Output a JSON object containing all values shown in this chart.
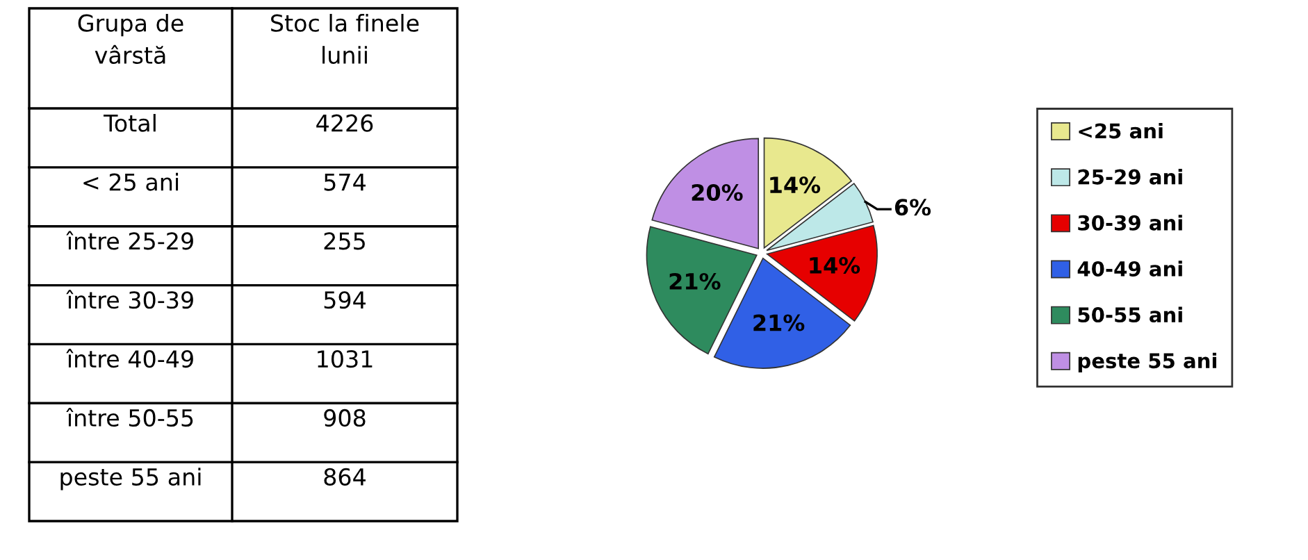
{
  "chart_data": [
    {
      "type": "other",
      "categories": [
        "Total",
        "< 25 ani",
        "între 25-29",
        "între 30-39",
        "între 40-49",
        "între 50-55",
        "peste 55 ani"
      ],
      "values": [
        4226,
        574,
        255,
        594,
        1031,
        908,
        864
      ],
      "data_labels": true,
      "annotations": [
        "Grupa de\nvârstă",
        "Stoc la finele\nlunii"
      ]
    },
    {
      "type": "pie",
      "categories": [
        "<25 ani",
        "25-29 ani",
        "30-39 ani",
        "40-49 ani",
        "50-55 ani",
        "peste 55 ani"
      ],
      "values": [
        14,
        6,
        14,
        21,
        21,
        20
      ],
      "value_labels": [
        "14%",
        "6%",
        "14%",
        "21%",
        "21%",
        "20%"
      ],
      "colors": [
        "#e8e88e",
        "#bde8e8",
        "#e60000",
        "#3060e6",
        "#2e8b5e",
        "#bf8fe4"
      ],
      "legend": "right"
    }
  ]
}
